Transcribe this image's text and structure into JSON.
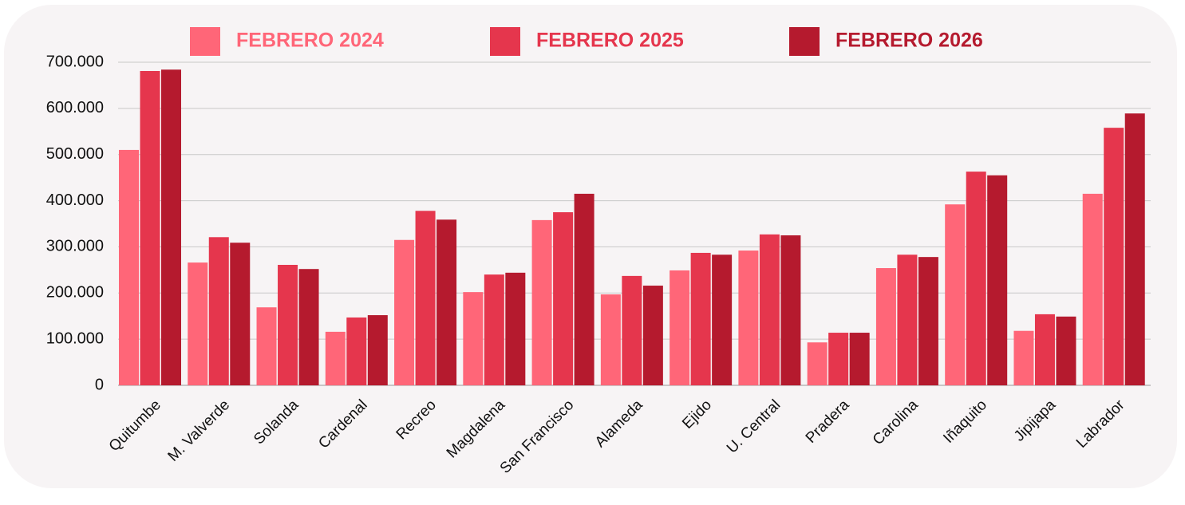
{
  "chart_data": {
    "type": "bar",
    "categories": [
      "Quitumbe",
      "M. Valverde",
      "Solanda",
      "Cardenal",
      "Recreo",
      "Magdalena",
      "San Francisco",
      "Alameda",
      "Ejido",
      "U. Central",
      "Pradera",
      "Carolina",
      "Iñaquito",
      "Jipijapa",
      "Labrador"
    ],
    "series": [
      {
        "name": "FEBRERO 2024",
        "color": "#ff6678",
        "values": [
          510000,
          266000,
          169000,
          116000,
          315000,
          202000,
          358000,
          197000,
          249000,
          292000,
          93000,
          254000,
          392000,
          118000,
          415000
        ]
      },
      {
        "name": "FEBRERO 2025",
        "color": "#e5364d",
        "values": [
          681000,
          321000,
          261000,
          147000,
          378000,
          240000,
          375000,
          237000,
          287000,
          327000,
          114000,
          283000,
          463000,
          154000,
          558000
        ]
      },
      {
        "name": "FEBRERO 2026",
        "color": "#b51a2e",
        "values": [
          684000,
          309000,
          252000,
          152000,
          359000,
          244000,
          415000,
          216000,
          283000,
          325000,
          114000,
          278000,
          455000,
          149000,
          589000
        ]
      }
    ],
    "ylim": [
      0,
      700000
    ],
    "yticks": [
      0,
      {
        "value": 100000,
        "label": "100.000"
      },
      {
        "value": 200000,
        "label": "200.000"
      },
      {
        "value": 300000,
        "label": "300.000"
      },
      {
        "value": 400000,
        "label": "400.000"
      },
      {
        "value": 500000,
        "label": "500.000"
      },
      {
        "value": 600000,
        "label": "600.000"
      },
      {
        "value": 700000,
        "label": "700.000"
      }
    ],
    "grid": true,
    "legend": "top"
  }
}
